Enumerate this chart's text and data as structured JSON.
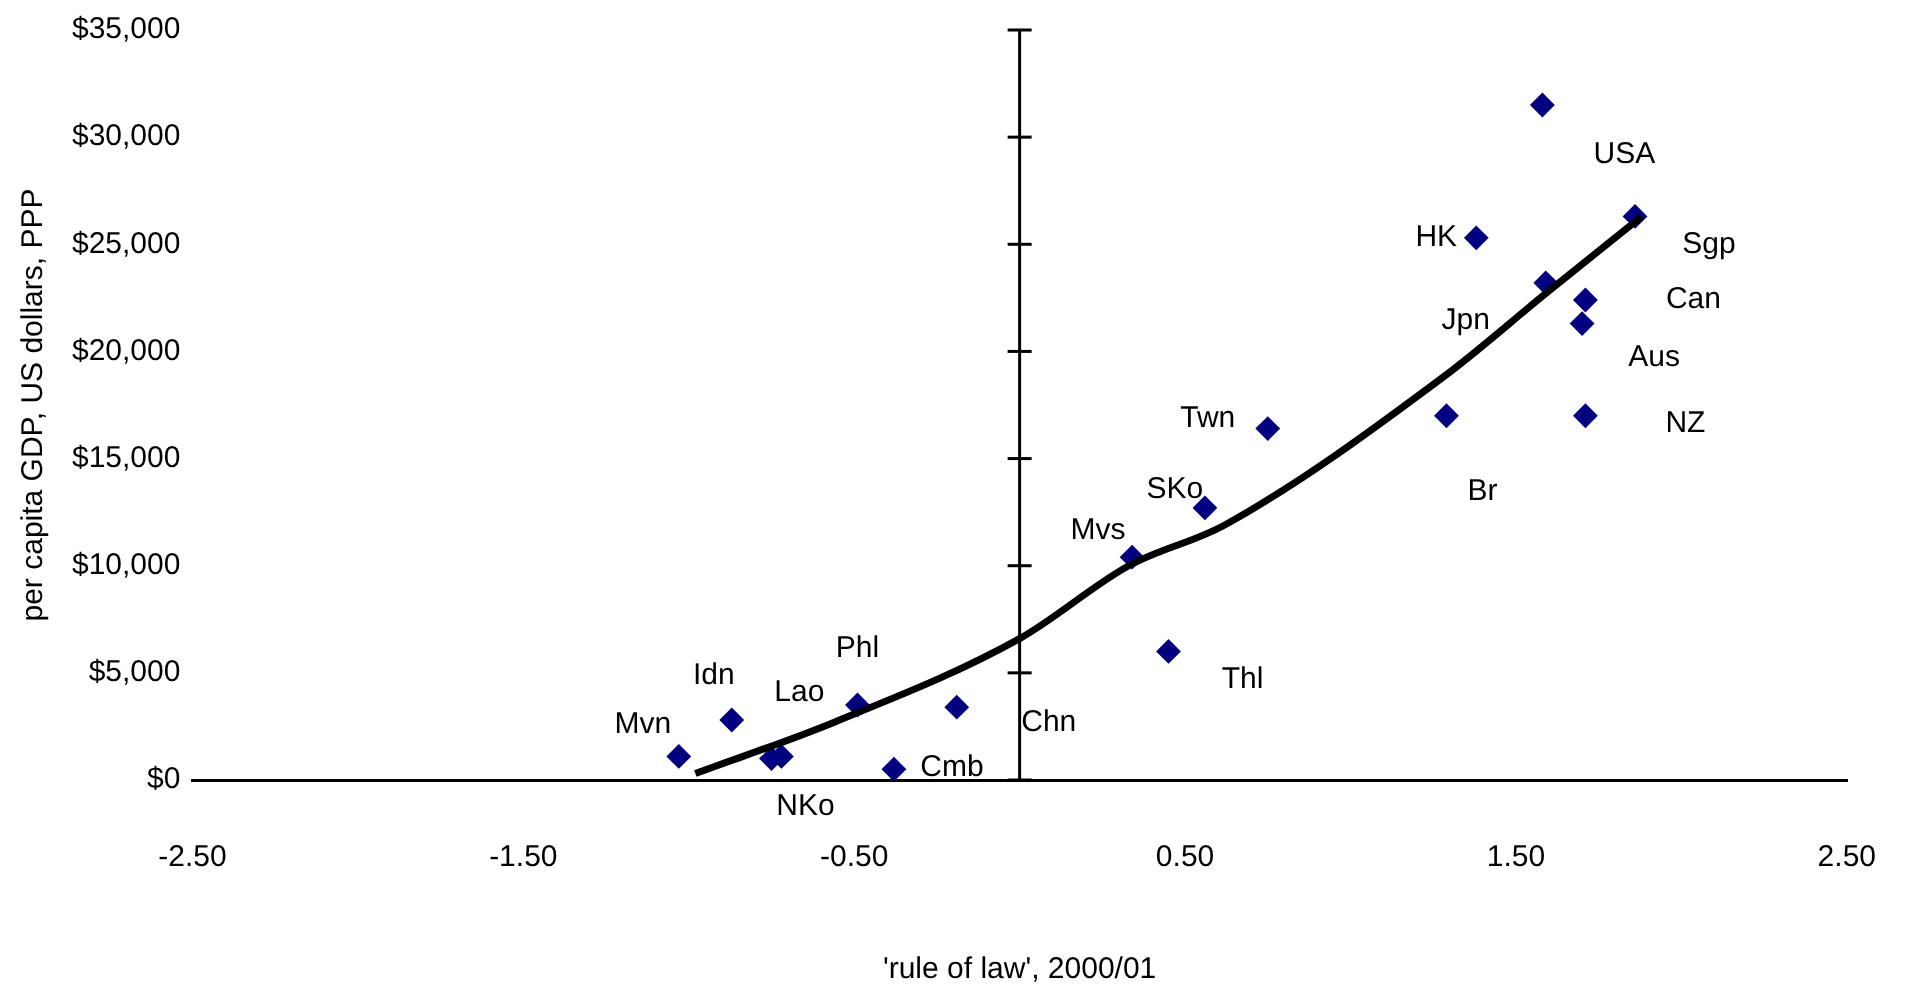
{
  "chart_data": {
    "type": "scatter",
    "xlabel": "'rule of law', 2000/01",
    "ylabel": "per capita GDP, US dollars, PPP",
    "xlim": [
      -2.5,
      2.5
    ],
    "xticks": [
      {
        "value": -2.5,
        "label": "-2.50"
      },
      {
        "value": -1.5,
        "label": "-1.50"
      },
      {
        "value": -0.5,
        "label": "-0.50"
      },
      {
        "value": 0.5,
        "label": "0.50"
      },
      {
        "value": 1.5,
        "label": "1.50"
      },
      {
        "value": 2.5,
        "label": "2.50"
      }
    ],
    "ylim": [
      0,
      35000
    ],
    "yticks": [
      {
        "value": 0,
        "label": "$0"
      },
      {
        "value": 5000,
        "label": "$5,000"
      },
      {
        "value": 10000,
        "label": "$10,000"
      },
      {
        "value": 15000,
        "label": "$15,000"
      },
      {
        "value": 20000,
        "label": "$20,000"
      },
      {
        "value": 25000,
        "label": "$25,000"
      },
      {
        "value": 30000,
        "label": "$30,000"
      },
      {
        "value": 35000,
        "label": "$35,000"
      }
    ],
    "grid": false,
    "legend": false,
    "marker": "diamond",
    "series": [
      {
        "color": "#000080",
        "x": [
          1.58,
          1.86,
          1.38,
          1.59,
          1.71,
          1.7,
          1.71,
          1.29,
          0.75,
          0.56,
          0.34,
          0.45,
          -0.19,
          -0.49,
          -0.87,
          -1.03,
          -0.75,
          -0.72,
          -0.38
        ],
        "values": [
          31500,
          26300,
          25300,
          23200,
          22400,
          21300,
          17000,
          17000,
          16400,
          12700,
          10400,
          6000,
          3400,
          3500,
          2800,
          1100,
          1000,
          1100,
          500
        ]
      },
      {
        "type": "line",
        "color": "#000000",
        "marker": "none",
        "x": [
          -0.98,
          -0.56,
          0,
          0.33,
          0.62,
          1.28,
          1.59,
          1.88
        ],
        "values": [
          300,
          2700,
          6600,
          10000,
          11900,
          18800,
          22700,
          26300
        ]
      }
    ],
    "annotations": [
      {
        "text": "USA",
        "x": 1.58,
        "y": 31500
      },
      {
        "text": "Sgp",
        "x": 1.86,
        "y": 26300
      },
      {
        "text": "HK",
        "x": 1.38,
        "y": 25300
      },
      {
        "text": "Jpn",
        "x": 1.59,
        "y": 23200
      },
      {
        "text": "Can",
        "x": 1.71,
        "y": 22400
      },
      {
        "text": "Aus",
        "x": 1.7,
        "y": 21300
      },
      {
        "text": "NZ",
        "x": 1.71,
        "y": 17000
      },
      {
        "text": "Br",
        "x": 1.29,
        "y": 17000
      },
      {
        "text": "Twn",
        "x": 0.75,
        "y": 16400
      },
      {
        "text": "SKo",
        "x": 0.56,
        "y": 12700
      },
      {
        "text": "Mvs",
        "x": 0.34,
        "y": 10400
      },
      {
        "text": "Thl",
        "x": 0.45,
        "y": 6000
      },
      {
        "text": "Chn",
        "x": -0.19,
        "y": 3400
      },
      {
        "text": "Phl",
        "x": -0.49,
        "y": 3500
      },
      {
        "text": "Idn",
        "x": -0.87,
        "y": 2800
      },
      {
        "text": "Lao",
        "x": -0.72,
        "y": 1100
      },
      {
        "text": "Mvn",
        "x": -1.03,
        "y": 1100
      },
      {
        "text": "Cmb",
        "x": -0.38,
        "y": 500
      },
      {
        "text": "NKo",
        "x": -0.75,
        "y": 1000
      }
    ]
  }
}
